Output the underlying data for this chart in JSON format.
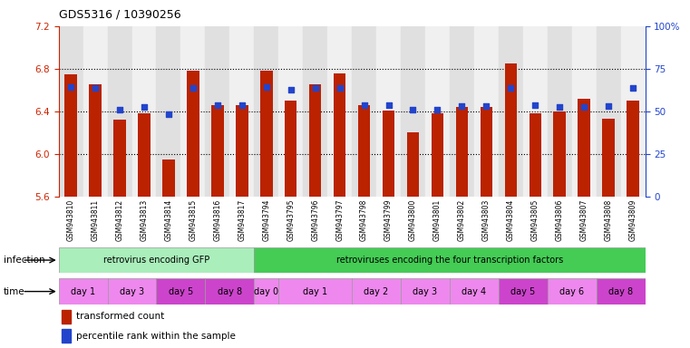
{
  "title": "GDS5316 / 10390256",
  "samples": [
    "GSM943810",
    "GSM943811",
    "GSM943812",
    "GSM943813",
    "GSM943814",
    "GSM943815",
    "GSM943816",
    "GSM943817",
    "GSM943794",
    "GSM943795",
    "GSM943796",
    "GSM943797",
    "GSM943798",
    "GSM943799",
    "GSM943800",
    "GSM943801",
    "GSM943802",
    "GSM943803",
    "GSM943804",
    "GSM943805",
    "GSM943806",
    "GSM943807",
    "GSM943808",
    "GSM943809"
  ],
  "bar_values": [
    6.75,
    6.65,
    6.32,
    6.38,
    5.95,
    6.78,
    6.46,
    6.46,
    6.78,
    6.5,
    6.65,
    6.76,
    6.46,
    6.41,
    6.2,
    6.38,
    6.44,
    6.44,
    6.85,
    6.38,
    6.4,
    6.52,
    6.33,
    6.5
  ],
  "blue_values": [
    6.63,
    6.62,
    6.42,
    6.44,
    6.37,
    6.62,
    6.46,
    6.46,
    6.63,
    6.6,
    6.62,
    6.62,
    6.46,
    6.46,
    6.42,
    6.42,
    6.45,
    6.45,
    6.62,
    6.46,
    6.44,
    6.44,
    6.45,
    6.62
  ],
  "ylim_left": [
    5.6,
    7.2
  ],
  "yticks_left": [
    5.6,
    6.0,
    6.4,
    6.8,
    7.2
  ],
  "yticks_right": [
    0,
    25,
    50,
    75,
    100
  ],
  "ytick_labels_right": [
    "0",
    "25",
    "50",
    "75",
    "100%"
  ],
  "bar_color": "#bb2200",
  "blue_color": "#2244cc",
  "bar_bottom": 5.6,
  "infection_groups": [
    {
      "label": "retrovirus encoding GFP",
      "start": 0,
      "end": 8,
      "color": "#aaeebb"
    },
    {
      "label": "retroviruses encoding the four transcription factors",
      "start": 8,
      "end": 24,
      "color": "#44cc55"
    }
  ],
  "time_groups": [
    {
      "label": "day 1",
      "start": 0,
      "end": 2,
      "color": "#ee88ee"
    },
    {
      "label": "day 3",
      "start": 2,
      "end": 4,
      "color": "#ee88ee"
    },
    {
      "label": "day 5",
      "start": 4,
      "end": 6,
      "color": "#cc44cc"
    },
    {
      "label": "day 8",
      "start": 6,
      "end": 8,
      "color": "#cc44cc"
    },
    {
      "label": "day 0",
      "start": 8,
      "end": 9,
      "color": "#ee88ee"
    },
    {
      "label": "day 1",
      "start": 9,
      "end": 12,
      "color": "#ee88ee"
    },
    {
      "label": "day 2",
      "start": 12,
      "end": 14,
      "color": "#ee88ee"
    },
    {
      "label": "day 3",
      "start": 14,
      "end": 16,
      "color": "#ee88ee"
    },
    {
      "label": "day 4",
      "start": 16,
      "end": 18,
      "color": "#ee88ee"
    },
    {
      "label": "day 5",
      "start": 18,
      "end": 20,
      "color": "#cc44cc"
    },
    {
      "label": "day 6",
      "start": 20,
      "end": 22,
      "color": "#ee88ee"
    },
    {
      "label": "day 8",
      "start": 22,
      "end": 24,
      "color": "#cc44cc"
    }
  ],
  "infection_label": "infection",
  "time_label": "time",
  "legend_red": "transformed count",
  "legend_blue": "percentile rank within the sample",
  "left_axis_color": "#cc2200",
  "right_axis_color": "#2244cc",
  "col_bg_even": "#e0e0e0",
  "col_bg_odd": "#f0f0f0"
}
